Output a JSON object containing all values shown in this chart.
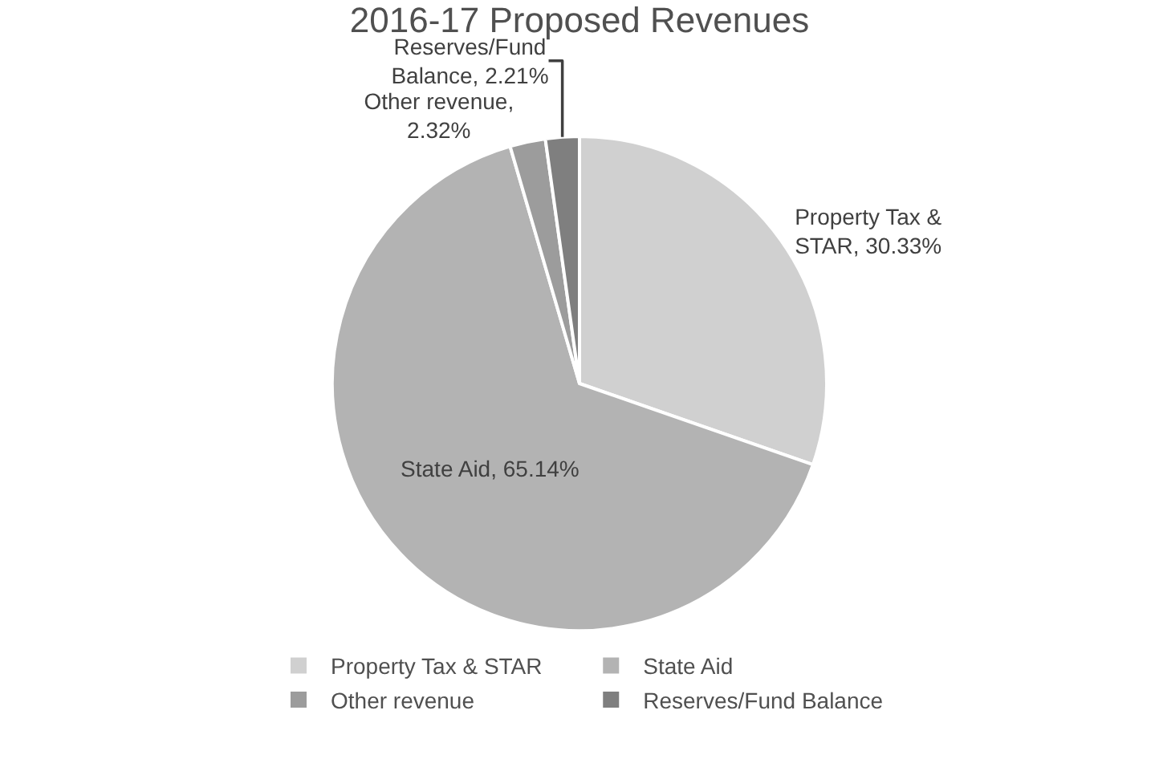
{
  "chart_data": {
    "type": "pie",
    "title": "2016-17 Proposed Revenues",
    "categories": [
      "Property Tax & STAR",
      "State Aid",
      "Other revenue",
      "Reserves/Fund Balance"
    ],
    "values": [
      30.33,
      65.14,
      2.32,
      2.21
    ],
    "colors": [
      "#d0d0d0",
      "#b3b3b3",
      "#9c9c9c",
      "#7f7f7f"
    ],
    "value_labels": [
      "Property Tax & STAR, 30.33%",
      "State Aid, 65.14%",
      "Other revenue, 2.32%",
      "Reserves/Fund Balance, 2.21%"
    ],
    "legend": "bottom"
  }
}
